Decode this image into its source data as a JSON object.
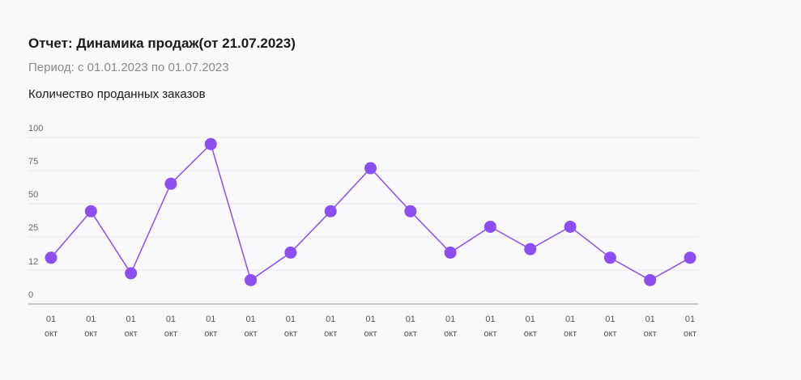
{
  "header": {
    "title": "Отчет: Динамика продаж(от 21.07.2023)",
    "subtitle": "Период: с 01.01.2023 по 01.07.2023"
  },
  "colors": {
    "accent": "#8b4ff0",
    "grid": "#e8e6ee",
    "axis": "#9a9a9a"
  },
  "chart_data": {
    "type": "line",
    "title": "Отчет: Динамика продаж(от 21.07.2023)",
    "subtitle": "Период: с 01.01.2023 по 01.07.2023",
    "ylabel": "Количество проданных заказов",
    "xlabel": "",
    "yticks": [
      0,
      12,
      25,
      50,
      75,
      100
    ],
    "categories": [
      [
        "01",
        "окт"
      ],
      [
        "01",
        "окт"
      ],
      [
        "01",
        "окт"
      ],
      [
        "01",
        "окт"
      ],
      [
        "01",
        "окт"
      ],
      [
        "01",
        "окт"
      ],
      [
        "01",
        "окт"
      ],
      [
        "01",
        "окт"
      ],
      [
        "01",
        "окт"
      ],
      [
        "01",
        "окт"
      ],
      [
        "01",
        "окт"
      ],
      [
        "01",
        "окт"
      ],
      [
        "01",
        "окт"
      ],
      [
        "01",
        "окт"
      ],
      [
        "01",
        "окт"
      ],
      [
        "01",
        "окт"
      ],
      [
        "01",
        "окт"
      ]
    ],
    "series": [
      {
        "values": [
          17,
          44,
          8,
          60,
          83,
          4,
          20,
          44,
          69,
          44,
          20,
          35,
          22,
          35,
          17,
          4,
          17
        ]
      }
    ],
    "grid": true,
    "legend": "none"
  }
}
